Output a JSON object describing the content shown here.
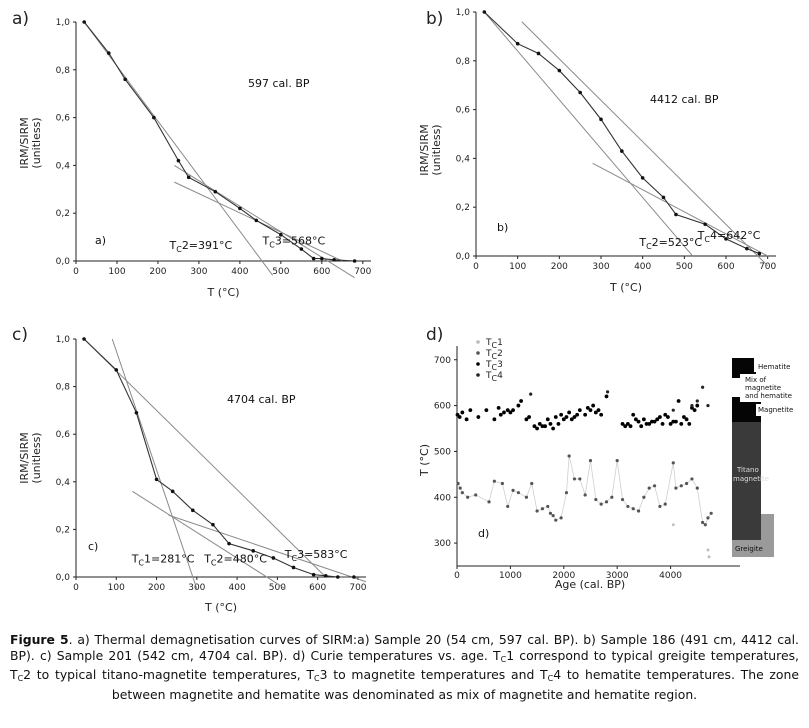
{
  "chart_data": [
    {
      "type": "line",
      "panel": "a)",
      "inner_label": "a)",
      "title": "597 cal. BP",
      "xlabel": "T (°C)",
      "ylabel": "IRM/SIRM",
      "ylabel_sub": "(unitless)",
      "xlim": [
        0,
        720
      ],
      "ylim": [
        0,
        1.0
      ],
      "xticks": [
        0,
        100,
        200,
        300,
        400,
        500,
        600,
        700
      ],
      "xtick_labels": [
        "0",
        "100",
        "200",
        "300",
        "400",
        "500",
        "600",
        "700"
      ],
      "yticks": [
        0,
        0.2,
        0.4,
        0.6,
        0.8,
        1.0
      ],
      "ytick_labels": [
        "0,0",
        "0,2",
        "0,4",
        "0,6",
        "0,8",
        "1,0"
      ],
      "series": [
        {
          "name": "IRM/SIRM",
          "x": [
            20,
            80,
            120,
            190,
            250,
            275,
            340,
            400,
            440,
            500,
            550,
            580,
            600,
            630,
            680
          ],
          "y": [
            1.0,
            0.87,
            0.76,
            0.6,
            0.42,
            0.35,
            0.29,
            0.22,
            0.17,
            0.11,
            0.05,
            0.01,
            0.01,
            0.005,
            0.0
          ]
        }
      ],
      "fit_lines": [
        [
          20,
          1.0,
          480,
          -0.06
        ],
        [
          240,
          0.4,
          680,
          -0.07
        ],
        [
          240,
          0.33,
          650,
          0.0
        ]
      ],
      "annotations": [
        {
          "pre": "T",
          "sub": "C",
          "post": "2=391°C",
          "x": 338,
          "y": 0.05
        },
        {
          "pre": "T",
          "sub": "C",
          "post": "3=568°C",
          "x": 565,
          "y": 0.07
        }
      ]
    },
    {
      "type": "line",
      "panel": "b)",
      "inner_label": "b)",
      "title": "4412 cal. BP",
      "xlabel": "T (°C)",
      "ylabel": "IRM/SIRM",
      "ylabel_sub": "(unitless)",
      "xlim": [
        0,
        720
      ],
      "ylim": [
        0,
        1.0
      ],
      "xticks": [
        0,
        100,
        200,
        300,
        400,
        500,
        600,
        700
      ],
      "xtick_labels": [
        "0",
        "100",
        "200",
        "300",
        "400",
        "500",
        "600",
        "700"
      ],
      "yticks": [
        0,
        0.2,
        0.4,
        0.6,
        0.8,
        1.0
      ],
      "ytick_labels": [
        "0,0",
        "0,2",
        "0,4",
        "0,6",
        "0,8",
        "1,0"
      ],
      "series": [
        {
          "name": "IRM/SIRM",
          "x": [
            20,
            100,
            150,
            200,
            250,
            300,
            350,
            400,
            450,
            480,
            550,
            600,
            650,
            680
          ],
          "y": [
            1.0,
            0.87,
            0.83,
            0.76,
            0.67,
            0.56,
            0.43,
            0.32,
            0.24,
            0.17,
            0.13,
            0.07,
            0.03,
            0.01
          ]
        }
      ],
      "fit_lines": [
        [
          110,
          0.96,
          700,
          -0.04
        ],
        [
          280,
          0.38,
          700,
          0.0
        ],
        [
          20,
          1.0,
          520,
          0.0
        ]
      ],
      "annotations": [
        {
          "pre": "T",
          "sub": "C",
          "post": "2=523°C",
          "x": 500,
          "y": 0.04
        },
        {
          "pre": "T",
          "sub": "C",
          "post": "4=642°C",
          "x": 640,
          "y": 0.07
        }
      ]
    },
    {
      "type": "line",
      "panel": "c)",
      "inner_label": "c)",
      "title": "4704 cal. BP",
      "xlabel": "T (°C)",
      "ylabel": "IRM/SIRM",
      "ylabel_sub": "(unitless)",
      "xlim": [
        0,
        720
      ],
      "ylim": [
        0,
        1.0
      ],
      "xticks": [
        0,
        100,
        200,
        300,
        400,
        500,
        600,
        700
      ],
      "xtick_labels": [
        "0",
        "100",
        "200",
        "300",
        "400",
        "500",
        "600",
        "700"
      ],
      "yticks": [
        0,
        0.2,
        0.4,
        0.6,
        0.8,
        1.0
      ],
      "ytick_labels": [
        "0,0",
        "0,2",
        "0,4",
        "0,6",
        "0,8",
        "1,0"
      ],
      "series": [
        {
          "name": "IRM/SIRM",
          "x": [
            20,
            100,
            150,
            200,
            240,
            290,
            340,
            380,
            440,
            490,
            540,
            590,
            620,
            650,
            690
          ],
          "y": [
            1.0,
            0.87,
            0.69,
            0.41,
            0.36,
            0.28,
            0.22,
            0.14,
            0.11,
            0.08,
            0.04,
            0.01,
            0.005,
            0.0,
            0.0
          ]
        }
      ],
      "fit_lines": [
        [
          90,
          1.0,
          300,
          -0.05
        ],
        [
          140,
          0.36,
          520,
          -0.05
        ],
        [
          230,
          0.26,
          720,
          -0.02
        ],
        [
          20,
          1.0,
          620,
          0.0
        ]
      ],
      "annotations": [
        {
          "pre": "T",
          "sub": "C",
          "post": "1=281°C",
          "x": 250,
          "y": 0.06
        },
        {
          "pre": "T",
          "sub": "C",
          "post": "2=480°C",
          "x": 430,
          "y": 0.06
        },
        {
          "pre": "T",
          "sub": "C",
          "post": "3=583°C",
          "x": 630,
          "y": 0.08
        }
      ]
    },
    {
      "type": "scatter",
      "panel": "d)",
      "inner_label": "d)",
      "xlabel": "Age (cal. BP)",
      "ylabel": "T (°C)",
      "xlim": [
        0,
        5300
      ],
      "ylim": [
        250,
        730
      ],
      "xticks": [
        0,
        1000,
        2000,
        3000,
        4000
      ],
      "xtick_labels": [
        "0",
        "1000",
        "2000",
        "3000",
        "4000"
      ],
      "yticks": [
        300,
        400,
        500,
        600,
        700
      ],
      "ytick_labels": [
        "300",
        "400",
        "500",
        "600",
        "700"
      ],
      "legend_position": "top-left",
      "series": [
        {
          "name": "Tc1",
          "x": [
            4050,
            4700,
            4720
          ],
          "y": [
            340,
            285,
            270
          ]
        },
        {
          "name": "Tc2",
          "x": [
            20,
            60,
            100,
            200,
            350,
            600,
            700,
            850,
            950,
            1050,
            1150,
            1300,
            1400,
            1500,
            1600,
            1700,
            1750,
            1800,
            1850,
            1950,
            2050,
            2100,
            2200,
            2300,
            2400,
            2500,
            2600,
            2700,
            2800,
            2900,
            3000,
            3100,
            3200,
            3300,
            3400,
            3500,
            3600,
            3700,
            3800,
            3900,
            4050,
            4100,
            4200,
            4300,
            4400,
            4500,
            4600,
            4650,
            4700,
            4760
          ],
          "y": [
            430,
            420,
            410,
            400,
            405,
            390,
            435,
            430,
            380,
            415,
            410,
            400,
            430,
            370,
            375,
            380,
            365,
            360,
            350,
            355,
            410,
            490,
            440,
            440,
            405,
            480,
            395,
            385,
            390,
            400,
            480,
            395,
            380,
            375,
            370,
            400,
            420,
            425,
            380,
            385,
            475,
            420,
            425,
            430,
            440,
            420,
            345,
            340,
            355,
            365
          ]
        },
        {
          "name": "Tc3",
          "x": [
            10,
            50,
            100,
            180,
            250,
            400,
            550,
            700,
            780,
            820,
            880,
            950,
            1000,
            1050,
            1150,
            1200,
            1300,
            1350,
            1450,
            1500,
            1550,
            1600,
            1650,
            1700,
            1750,
            1800,
            1850,
            1900,
            1950,
            2000,
            2050,
            2100,
            2150,
            2200,
            2250,
            2300,
            2400,
            2450,
            2500,
            2550,
            2600,
            2650,
            2700,
            2800,
            3100,
            3150,
            3200,
            3250,
            3300,
            3350,
            3400,
            3450,
            3500,
            3550,
            3600,
            3650,
            3700,
            3750,
            3800,
            3850,
            3900,
            3950,
            4000,
            4050,
            4100,
            4150,
            4200,
            4250,
            4300,
            4350,
            4400,
            4450,
            4500
          ],
          "y": [
            580,
            575,
            585,
            570,
            590,
            575,
            590,
            570,
            595,
            580,
            585,
            590,
            585,
            590,
            600,
            610,
            570,
            575,
            555,
            550,
            560,
            555,
            555,
            570,
            560,
            550,
            575,
            560,
            580,
            570,
            575,
            585,
            570,
            575,
            580,
            590,
            580,
            595,
            590,
            600,
            585,
            590,
            580,
            620,
            560,
            555,
            560,
            555,
            580,
            570,
            565,
            555,
            570,
            560,
            560,
            565,
            565,
            570,
            575,
            560,
            580,
            575,
            560,
            565,
            565,
            610,
            560,
            575,
            570,
            560,
            595,
            590,
            600
          ]
        },
        {
          "name": "Tc4",
          "x": [
            1380,
            2820,
            4050,
            4400,
            4500,
            4600,
            4700
          ],
          "y": [
            625,
            630,
            590,
            600,
            610,
            640,
            600
          ]
        }
      ],
      "zones": [
        {
          "label": "Hematite",
          "t_from": 640,
          "t_to": 700
        },
        {
          "label": "Mix of magnetite and hematite",
          "t_from": 595,
          "t_to": 640
        },
        {
          "label": "Magnetite",
          "t_from": 560,
          "t_to": 595
        },
        {
          "label": "Titano magnetite",
          "t_from": 345,
          "t_to": 560
        },
        {
          "label": "Greigite",
          "t_from": 270,
          "t_to": 345
        }
      ]
    }
  ],
  "labels": {
    "greigite": "Greigite",
    "titano1": "Titano",
    "titano2": "magnetite",
    "magnetite": "Magnetite",
    "mix1": "Mix of",
    "mix2": "magnetite",
    "mix3": "and hematite",
    "hematite": "Hematite"
  },
  "caption": {
    "figure_label": "Figure 5",
    "text1": ". a) Thermal demagnetisation curves of SIRM:a) Sample 20 (54 cm, 597 cal. BP). b) Sample 186 (491 cm, 4412 cal. BP). c) Sample 201 (542 cm, 4704 cal. BP). d) Curie temperatures vs. age. T",
    "s1": "C",
    "text2": "1 correspond to typical greigite temperatures, T",
    "s2": "C",
    "text3": "2 to typical titano-magnetite temperatures, T",
    "s3": "C",
    "text4": "3 to magnetite temperatures and T",
    "s4": "C",
    "text5": "4 to hematite temperatures. The zone between magnetite and hematite was denominated as mix of magnetite and hematite region."
  },
  "colors": {
    "line": "#333333",
    "fit": "#8a8a8a",
    "point": "#111111",
    "zone_dark": "#3a3a3a",
    "zone_grey": "#9a9a9a"
  }
}
